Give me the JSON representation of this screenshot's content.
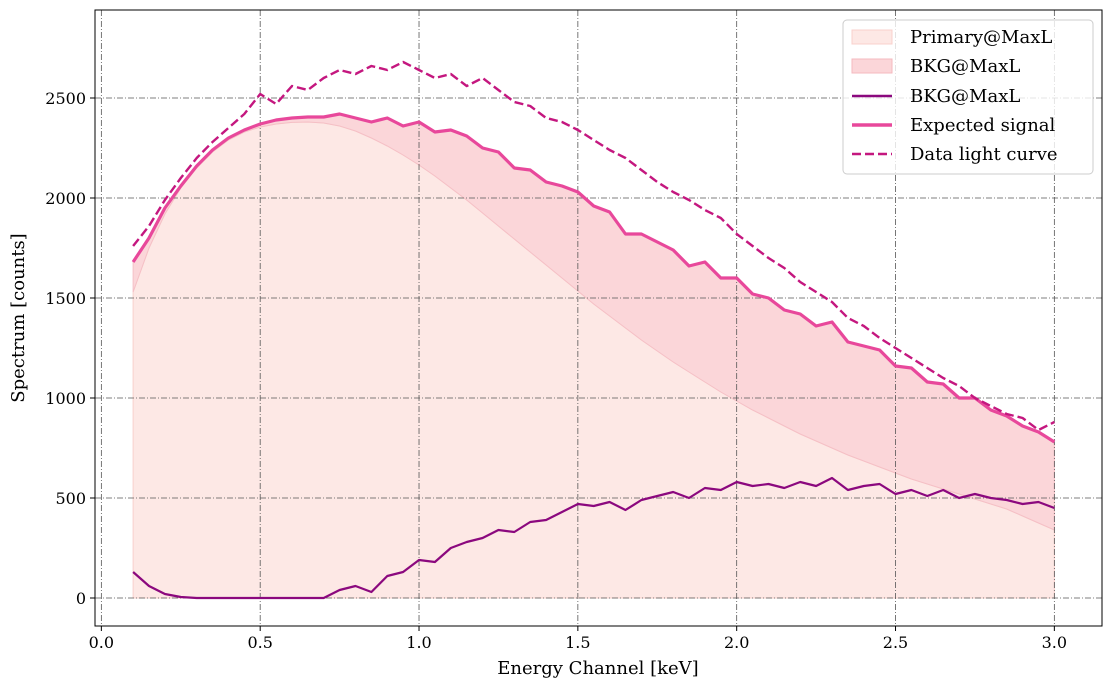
{
  "chart_data": {
    "type": "line",
    "title": "",
    "xlabel": "Energy Channel [keV]",
    "ylabel": "Spectrum [counts]",
    "xlim": [
      -0.02,
      3.15
    ],
    "ylim": [
      -140,
      2940
    ],
    "grid": true,
    "legend_position": "top-right",
    "xticks": [
      0.0,
      0.5,
      1.0,
      1.5,
      2.0,
      2.5,
      3.0
    ],
    "xtick_labels": [
      "0.0",
      "0.5",
      "1.0",
      "1.5",
      "2.0",
      "2.5",
      "3.0"
    ],
    "yticks": [
      0,
      500,
      1000,
      1500,
      2000,
      2500
    ],
    "ytick_labels": [
      "0",
      "500",
      "1000",
      "1500",
      "2000",
      "2500"
    ],
    "x": [
      0.1,
      0.15,
      0.2,
      0.25,
      0.3,
      0.35,
      0.4,
      0.45,
      0.5,
      0.55,
      0.6,
      0.65,
      0.7,
      0.75,
      0.8,
      0.85,
      0.9,
      0.95,
      1.0,
      1.05,
      1.1,
      1.15,
      1.2,
      1.25,
      1.3,
      1.35,
      1.4,
      1.45,
      1.5,
      1.55,
      1.6,
      1.65,
      1.7,
      1.75,
      1.8,
      1.85,
      1.9,
      1.95,
      2.0,
      2.05,
      2.1,
      2.15,
      2.2,
      2.25,
      2.3,
      2.35,
      2.4,
      2.45,
      2.5,
      2.55,
      2.6,
      2.65,
      2.7,
      2.75,
      2.8,
      2.85,
      2.9,
      2.95,
      3.0
    ],
    "series": [
      {
        "name": "Primary@MaxL",
        "kind": "fill",
        "color": "#fde8e5",
        "values": [
          1530,
          1750,
          1920,
          2050,
          2150,
          2230,
          2290,
          2330,
          2355,
          2370,
          2378,
          2380,
          2375,
          2360,
          2335,
          2300,
          2260,
          2215,
          2165,
          2110,
          2050,
          1990,
          1925,
          1860,
          1795,
          1730,
          1665,
          1600,
          1535,
          1470,
          1410,
          1350,
          1290,
          1235,
          1180,
          1130,
          1080,
          1030,
          985,
          940,
          900,
          860,
          820,
          785,
          750,
          715,
          685,
          655,
          625,
          595,
          570,
          545,
          520,
          495,
          470,
          445,
          410,
          375,
          340
        ]
      },
      {
        "name": "BKG@MaxL",
        "kind": "fill-between",
        "color": "#fbd6d9",
        "between": [
          "Primary@MaxL",
          "Expected signal"
        ]
      },
      {
        "name": "BKG@MaxL",
        "kind": "line",
        "color": "#8b087e",
        "values": [
          130,
          60,
          20,
          5,
          0,
          0,
          0,
          0,
          0,
          0,
          0,
          0,
          0,
          40,
          60,
          30,
          110,
          130,
          190,
          180,
          250,
          280,
          300,
          340,
          330,
          380,
          390,
          430,
          470,
          460,
          480,
          440,
          490,
          510,
          530,
          500,
          550,
          540,
          580,
          560,
          570,
          550,
          580,
          560,
          600,
          540,
          560,
          570,
          520,
          540,
          510,
          540,
          500,
          520,
          500,
          490,
          470,
          480,
          450
        ]
      },
      {
        "name": "Expected signal",
        "kind": "line",
        "color": "#e8489b",
        "values": [
          1680,
          1800,
          1950,
          2060,
          2160,
          2240,
          2300,
          2340,
          2370,
          2390,
          2400,
          2405,
          2405,
          2420,
          2400,
          2380,
          2400,
          2360,
          2380,
          2330,
          2340,
          2310,
          2250,
          2230,
          2150,
          2140,
          2080,
          2060,
          2030,
          1960,
          1930,
          1820,
          1820,
          1780,
          1740,
          1660,
          1680,
          1600,
          1600,
          1520,
          1500,
          1440,
          1420,
          1360,
          1380,
          1280,
          1260,
          1240,
          1160,
          1150,
          1080,
          1070,
          1000,
          1000,
          940,
          910,
          860,
          830,
          780
        ]
      },
      {
        "name": "Data light curve",
        "kind": "dashed",
        "color": "#c4177f",
        "values": [
          1760,
          1860,
          1990,
          2100,
          2200,
          2280,
          2350,
          2420,
          2520,
          2470,
          2560,
          2540,
          2600,
          2640,
          2620,
          2660,
          2640,
          2680,
          2640,
          2600,
          2620,
          2560,
          2600,
          2540,
          2480,
          2460,
          2400,
          2380,
          2340,
          2290,
          2240,
          2200,
          2140,
          2080,
          2030,
          1990,
          1940,
          1900,
          1820,
          1760,
          1700,
          1650,
          1580,
          1530,
          1480,
          1400,
          1360,
          1300,
          1250,
          1200,
          1150,
          1100,
          1060,
          1000,
          960,
          920,
          900,
          840,
          880
        ]
      }
    ],
    "legend": [
      "Primary@MaxL",
      "BKG@MaxL",
      "BKG@MaxL",
      "Expected signal",
      "Data light curve"
    ]
  }
}
